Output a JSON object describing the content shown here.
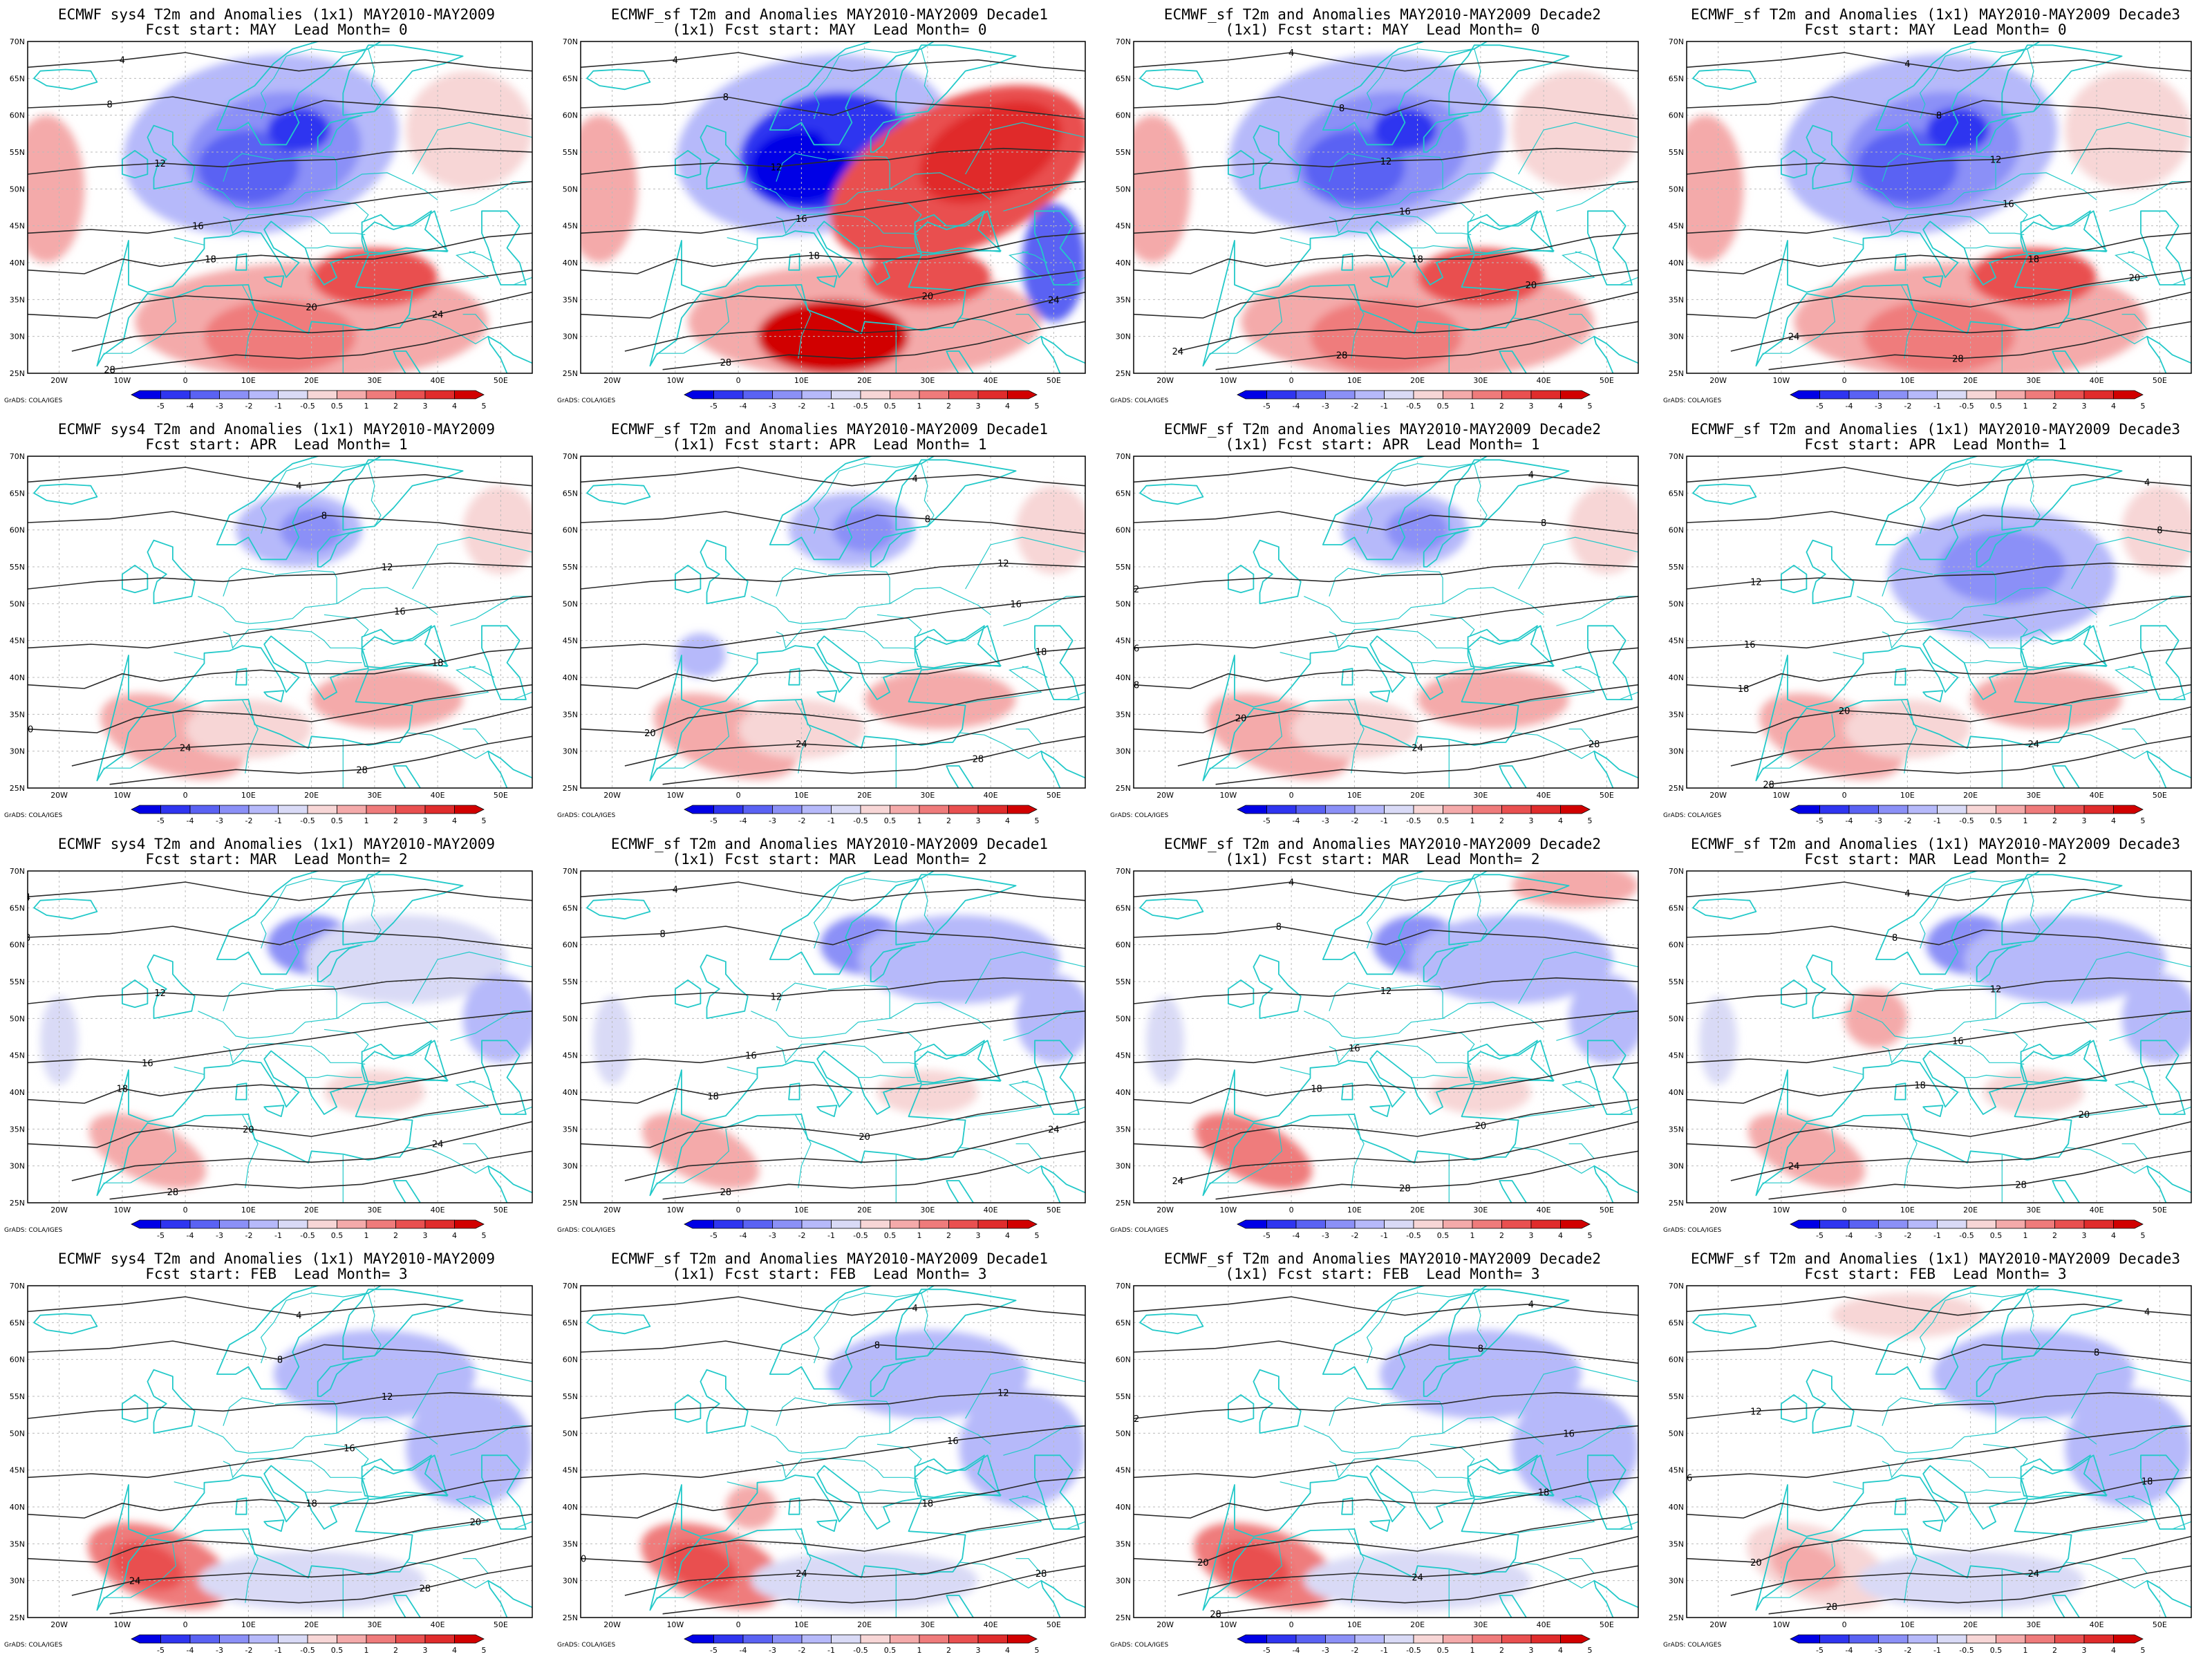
{
  "map": {
    "lon_labels": [
      "20W",
      "10W",
      "0",
      "10E",
      "20E",
      "30E",
      "40E",
      "50E"
    ],
    "lat_labels": [
      "25N",
      "30N",
      "35N",
      "40N",
      "45N",
      "50N",
      "55N",
      "60N",
      "65N",
      "70N"
    ],
    "colorbar_labels": [
      "-5",
      "-4",
      "-3",
      "-2",
      "-1",
      "-0.5",
      "0.5",
      "1",
      "2",
      "3",
      "4",
      "5"
    ],
    "credit": "GrADS: COLA/IGES",
    "colors": {
      "coast": "#23c9c9",
      "contour": "#2b2b2b",
      "neg": [
        "#0000e6",
        "#2f35f0",
        "#5a62f3",
        "#8b90f7",
        "#b6b9fa",
        "#d9daf6"
      ],
      "pos": [
        "#f7d6d6",
        "#f4aaaa",
        "#ef7b7b",
        "#e95050",
        "#e02c2c",
        "#d10000"
      ]
    },
    "contour_labels": [
      "4",
      "8",
      "12",
      "16",
      "18",
      "20",
      "24",
      "28"
    ]
  },
  "panels": [
    {
      "title1": "ECMWF sys4 T2m and Anomalies (1x1) MAY2010-MAY2009",
      "title2": "Fcst start: MAY  Lead Month= 0"
    },
    {
      "title1": "ECMWF_sf T2m and Anomalies MAY2010-MAY2009 Decade1",
      "title2": "(1x1) Fcst start: MAY  Lead Month= 0"
    },
    {
      "title1": "ECMWF_sf T2m and Anomalies MAY2010-MAY2009 Decade2",
      "title2": "(1x1) Fcst start: MAY  Lead Month= 0"
    },
    {
      "title1": "ECMWF_sf T2m and Anomalies (1x1) MAY2010-MAY2009 Decade3",
      "title2": "Fcst start: MAY  Lead Month= 0"
    },
    {
      "title1": "ECMWF sys4 T2m and Anomalies (1x1) MAY2010-MAY2009",
      "title2": "Fcst start: APR  Lead Month= 1"
    },
    {
      "title1": "ECMWF_sf T2m and Anomalies MAY2010-MAY2009 Decade1",
      "title2": "(1x1) Fcst start: APR  Lead Month= 1"
    },
    {
      "title1": "ECMWF_sf T2m and Anomalies MAY2010-MAY2009 Decade2",
      "title2": "(1x1) Fcst start: APR  Lead Month= 1"
    },
    {
      "title1": "ECMWF_sf T2m and Anomalies (1x1) MAY2010-MAY2009 Decade3",
      "title2": "Fcst start: APR  Lead Month= 1"
    },
    {
      "title1": "ECMWF sys4 T2m and Anomalies (1x1) MAY2010-MAY2009",
      "title2": "Fcst start: MAR  Lead Month= 2"
    },
    {
      "title1": "ECMWF_sf T2m and Anomalies MAY2010-MAY2009 Decade1",
      "title2": "(1x1) Fcst start: MAR  Lead Month= 2"
    },
    {
      "title1": "ECMWF_sf T2m and Anomalies MAY2010-MAY2009 Decade2",
      "title2": "(1x1) Fcst start: MAR  Lead Month= 2"
    },
    {
      "title1": "ECMWF_sf T2m and Anomalies (1x1) MAY2010-MAY2009 Decade3",
      "title2": "Fcst start: MAR  Lead Month= 2"
    },
    {
      "title1": "ECMWF sys4 T2m and Anomalies (1x1) MAY2010-MAY2009",
      "title2": "Fcst start: FEB  Lead Month= 3"
    },
    {
      "title1": "ECMWF_sf T2m and Anomalies MAY2010-MAY2009 Decade1",
      "title2": "(1x1) Fcst start: FEB  Lead Month= 3"
    },
    {
      "title1": "ECMWF_sf T2m and Anomalies MAY2010-MAY2009 Decade2",
      "title2": "(1x1) Fcst start: FEB  Lead Month= 3"
    },
    {
      "title1": "ECMWF_sf T2m and Anomalies (1x1) MAY2010-MAY2009 Decade3",
      "title2": "Fcst start: FEB  Lead Month= 3"
    }
  ]
}
